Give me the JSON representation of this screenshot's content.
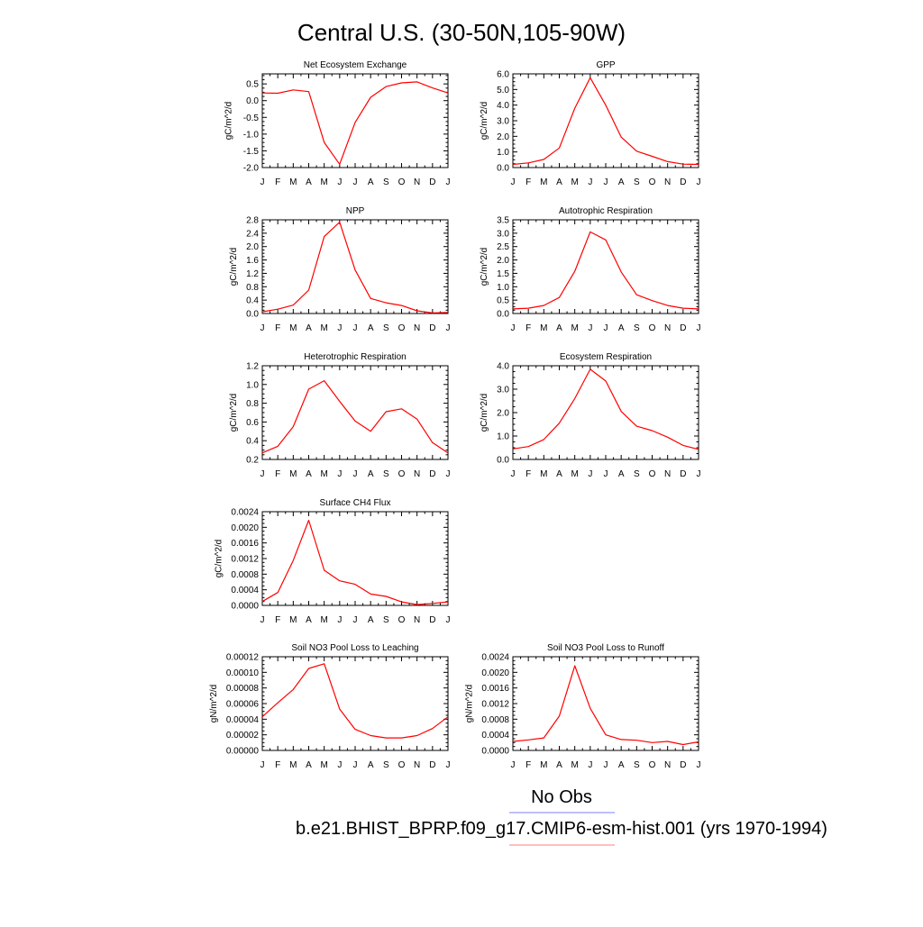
{
  "title": "Central U.S. (30-50N,105-90W)",
  "legend": {
    "obs_label": "No Obs",
    "obs_color": "#7f7fff",
    "model_label": "b.e21.BHIST_BPRP.f09_g17.CMIP6-esm-hist.001 (yrs 1970-1994)",
    "model_color": "#ff7f7f"
  },
  "series_color": "#ff0000",
  "months": [
    "J",
    "F",
    "M",
    "A",
    "M",
    "J",
    "J",
    "A",
    "S",
    "O",
    "N",
    "D",
    "J"
  ],
  "chart_data": [
    {
      "type": "line",
      "title": "Net Ecosystem Exchange",
      "ylabel": "gC/m^2/d",
      "ylim": [
        -2.0,
        0.8
      ],
      "yticks": [
        -2.0,
        -1.5,
        -1.0,
        -0.5,
        0.0,
        0.5
      ],
      "ytick_labels": [
        "-2.0",
        "-1.5",
        "-1.0",
        "-0.5",
        "0.0",
        "0.5"
      ],
      "values": [
        0.23,
        0.22,
        0.32,
        0.27,
        -1.25,
        -1.9,
        -0.65,
        0.1,
        0.42,
        0.53,
        0.56,
        0.38,
        0.23
      ]
    },
    {
      "type": "line",
      "title": "GPP",
      "ylabel": "gC/m^2/d",
      "ylim": [
        0.0,
        6.0
      ],
      "yticks": [
        0.0,
        1.0,
        2.0,
        3.0,
        4.0,
        5.0,
        6.0
      ],
      "ytick_labels": [
        "0.0",
        "1.0",
        "2.0",
        "3.0",
        "4.0",
        "5.0",
        "6.0"
      ],
      "values": [
        0.2,
        0.3,
        0.52,
        1.25,
        3.8,
        5.75,
        4.0,
        1.95,
        1.05,
        0.72,
        0.38,
        0.22,
        0.2
      ]
    },
    {
      "type": "line",
      "title": "NPP",
      "ylabel": "gC/m^2/d",
      "ylim": [
        0.0,
        2.8
      ],
      "yticks": [
        0.0,
        0.4,
        0.8,
        1.2,
        1.6,
        2.0,
        2.4,
        2.8
      ],
      "ytick_labels": [
        "0.0",
        "0.4",
        "0.8",
        "1.2",
        "1.6",
        "2.0",
        "2.4",
        "2.8"
      ],
      "values": [
        0.05,
        0.13,
        0.25,
        0.7,
        2.3,
        2.73,
        1.3,
        0.45,
        0.32,
        0.24,
        0.08,
        0.02,
        0.03
      ]
    },
    {
      "type": "line",
      "title": "Autotrophic Respiration",
      "ylabel": "gC/m^2/d",
      "ylim": [
        0.0,
        3.5
      ],
      "yticks": [
        0.0,
        0.5,
        1.0,
        1.5,
        2.0,
        2.5,
        3.0,
        3.5
      ],
      "ytick_labels": [
        "0.0",
        "0.5",
        "1.0",
        "1.5",
        "2.0",
        "2.5",
        "3.0",
        "3.5"
      ],
      "values": [
        0.17,
        0.2,
        0.3,
        0.6,
        1.58,
        3.05,
        2.75,
        1.55,
        0.7,
        0.48,
        0.3,
        0.2,
        0.17
      ]
    },
    {
      "type": "line",
      "title": "Heterotrophic Respiration",
      "ylabel": "gC/m^2/d",
      "ylim": [
        0.2,
        1.2
      ],
      "yticks": [
        0.2,
        0.4,
        0.6,
        0.8,
        1.0,
        1.2
      ],
      "ytick_labels": [
        "0.2",
        "0.4",
        "0.6",
        "0.8",
        "1.0",
        "1.2"
      ],
      "values": [
        0.27,
        0.34,
        0.55,
        0.95,
        1.04,
        0.82,
        0.61,
        0.5,
        0.71,
        0.74,
        0.63,
        0.38,
        0.27
      ]
    },
    {
      "type": "line",
      "title": "Ecosystem Respiration",
      "ylabel": "gC/m^2/d",
      "ylim": [
        0.0,
        4.0
      ],
      "yticks": [
        0.0,
        1.0,
        2.0,
        3.0,
        4.0
      ],
      "ytick_labels": [
        "0.0",
        "1.0",
        "2.0",
        "3.0",
        "4.0"
      ],
      "values": [
        0.45,
        0.55,
        0.85,
        1.55,
        2.6,
        3.85,
        3.35,
        2.05,
        1.42,
        1.23,
        0.95,
        0.6,
        0.43
      ]
    },
    {
      "type": "line",
      "title": "Surface CH4 Flux",
      "ylabel": "gC/m^2/d",
      "ylim": [
        0.0,
        0.0024
      ],
      "yticks": [
        0.0,
        0.0004,
        0.0008,
        0.0012,
        0.0016,
        0.002,
        0.0024
      ],
      "ytick_labels": [
        "0.0000",
        "0.0004",
        "0.0008",
        "0.0012",
        "0.0016",
        "0.0020",
        "0.0024"
      ],
      "values": [
        0.0001,
        0.00033,
        0.00115,
        0.00218,
        0.0009,
        0.00063,
        0.00054,
        0.00029,
        0.00023,
        9e-05,
        2e-05,
        5e-05,
        9e-05
      ]
    },
    {
      "type": "line",
      "title": "Soil NO3 Pool Loss to Leaching",
      "ylabel": "gN/m^2/d",
      "ylim": [
        0.0,
        0.00012
      ],
      "yticks": [
        0.0,
        2e-05,
        4e-05,
        6e-05,
        8e-05,
        0.0001,
        0.00012
      ],
      "ytick_labels": [
        "0.00000",
        "0.00002",
        "0.00004",
        "0.00006",
        "0.00008",
        "0.00010",
        "0.00012"
      ],
      "values": [
        4.3e-05,
        6.1e-05,
        7.8e-05,
        0.000105,
        0.000111,
        5.3e-05,
        2.7e-05,
        1.9e-05,
        1.6e-05,
        1.6e-05,
        1.9e-05,
        2.8e-05,
        4.3e-05
      ]
    },
    {
      "type": "line",
      "title": "Soil NO3 Pool Loss to Runoff",
      "ylabel": "gN/m^2/d",
      "ylim": [
        0.0,
        0.0024
      ],
      "yticks": [
        0.0,
        0.0004,
        0.0008,
        0.0012,
        0.0016,
        0.002,
        0.0024
      ],
      "ytick_labels": [
        "0.0000",
        "0.0004",
        "0.0008",
        "0.0012",
        "0.0016",
        "0.0020",
        "0.0024"
      ],
      "values": [
        0.00023,
        0.00027,
        0.00032,
        0.00088,
        0.00217,
        0.00108,
        0.0004,
        0.00028,
        0.00026,
        0.0002,
        0.00023,
        0.00015,
        0.00022
      ]
    }
  ]
}
